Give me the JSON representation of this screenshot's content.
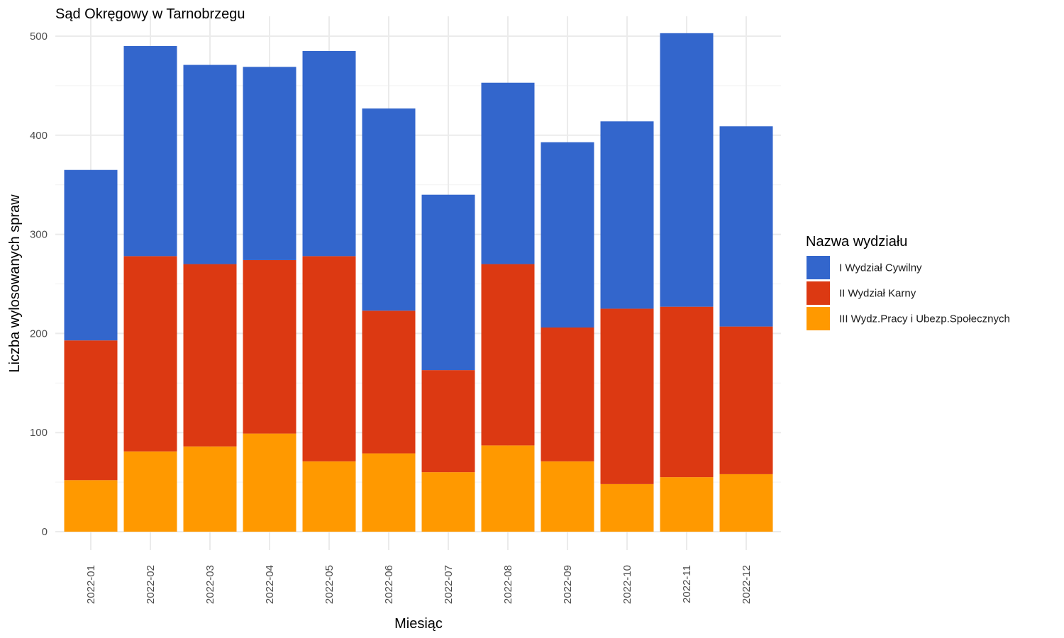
{
  "chart_data": {
    "type": "bar",
    "stacked": true,
    "title": "Sąd Okręgowy w Tarnobrzegu",
    "xlabel": "Miesiąc",
    "ylabel": "Liczba wylosowanych spraw",
    "ylim": [
      0,
      520
    ],
    "y_ticks": [
      0,
      100,
      200,
      300,
      400,
      500
    ],
    "grid": true,
    "categories": [
      "2022-01",
      "2022-02",
      "2022-03",
      "2022-04",
      "2022-05",
      "2022-06",
      "2022-07",
      "2022-08",
      "2022-09",
      "2022-10",
      "2022-11",
      "2022-12"
    ],
    "legend": {
      "title": "Nazwa wydziału",
      "position": "right"
    },
    "series": [
      {
        "name": "III Wydz.Pracy i Ubezp.Społecznych",
        "color": "#FF9900",
        "values": [
          52,
          81,
          86,
          99,
          71,
          79,
          60,
          87,
          71,
          48,
          55,
          58
        ]
      },
      {
        "name": "II Wydział Karny",
        "color": "#DC3912",
        "values": [
          141,
          197,
          184,
          175,
          207,
          144,
          103,
          183,
          135,
          177,
          172,
          149
        ]
      },
      {
        "name": "I Wydział Cywilny",
        "color": "#3366CC",
        "values": [
          172,
          212,
          201,
          195,
          207,
          204,
          177,
          183,
          187,
          189,
          276,
          202
        ]
      }
    ],
    "legend_order": [
      "I Wydział Cywilny",
      "II Wydział Karny",
      "III Wydz.Pracy i Ubezp.Społecznych"
    ]
  }
}
